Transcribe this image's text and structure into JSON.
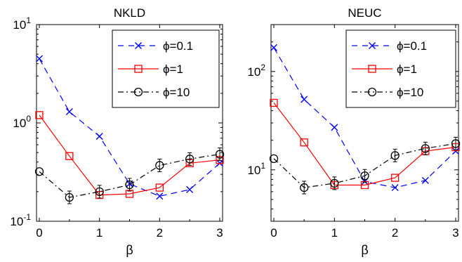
{
  "chart_data": [
    {
      "type": "line",
      "title": "NKLD",
      "xlabel": "β",
      "ylabel": "",
      "yscale": "log",
      "xlim": [
        0,
        3
      ],
      "ylim": [
        0.1,
        10
      ],
      "xticks": [
        "0",
        "1",
        "2",
        "3"
      ],
      "yticks": [
        {
          "base": "10",
          "exp": "1",
          "value": 10
        },
        {
          "base": "10",
          "exp": "0",
          "value": 1
        },
        {
          "base": "10",
          "exp": "-1",
          "value": 0.1
        }
      ],
      "legend_position": "top-right",
      "x": [
        0,
        0.5,
        1,
        1.5,
        2,
        2.5,
        3
      ],
      "series": [
        {
          "name": "ϕ=0.1",
          "color": "#0000ff",
          "marker": "x",
          "linestyle": "dashed",
          "values": [
            4.5,
            1.3,
            0.73,
            0.24,
            0.18,
            0.21,
            0.39
          ]
        },
        {
          "name": "ϕ=1",
          "color": "#ff0000",
          "marker": "square",
          "linestyle": "solid",
          "values": [
            1.2,
            0.46,
            0.185,
            0.19,
            0.22,
            0.39,
            0.42
          ]
        },
        {
          "name": "ϕ=10",
          "color": "#000000",
          "marker": "circle",
          "linestyle": "dashdot",
          "values": [
            0.32,
            0.175,
            0.2,
            0.235,
            0.37,
            0.43,
            0.48
          ]
        }
      ]
    },
    {
      "type": "line",
      "title": "NEUC",
      "xlabel": "β",
      "ylabel": "",
      "yscale": "log",
      "xlim": [
        0,
        3
      ],
      "ylim": [
        3,
        300
      ],
      "xticks": [
        "0",
        "1",
        "2",
        "3"
      ],
      "yticks": [
        {
          "base": "10",
          "exp": "2",
          "value": 100
        },
        {
          "base": "10",
          "exp": "1",
          "value": 10
        }
      ],
      "legend_position": "top-right",
      "x": [
        0,
        0.5,
        1,
        1.5,
        2,
        2.5,
        3
      ],
      "series": [
        {
          "name": "ϕ=0.1",
          "color": "#0000ff",
          "marker": "x",
          "linestyle": "dashed",
          "values": [
            175,
            52,
            27,
            7.6,
            6.6,
            7.8,
            15.5
          ]
        },
        {
          "name": "ϕ=1",
          "color": "#ff0000",
          "marker": "square",
          "linestyle": "solid",
          "values": [
            48,
            19,
            7,
            7,
            8.3,
            15.5,
            17
          ]
        },
        {
          "name": "ϕ=10",
          "color": "#000000",
          "marker": "circle",
          "linestyle": "dashdot",
          "values": [
            13,
            6.6,
            7.3,
            8.7,
            14,
            16.5,
            18.5
          ]
        }
      ]
    }
  ]
}
